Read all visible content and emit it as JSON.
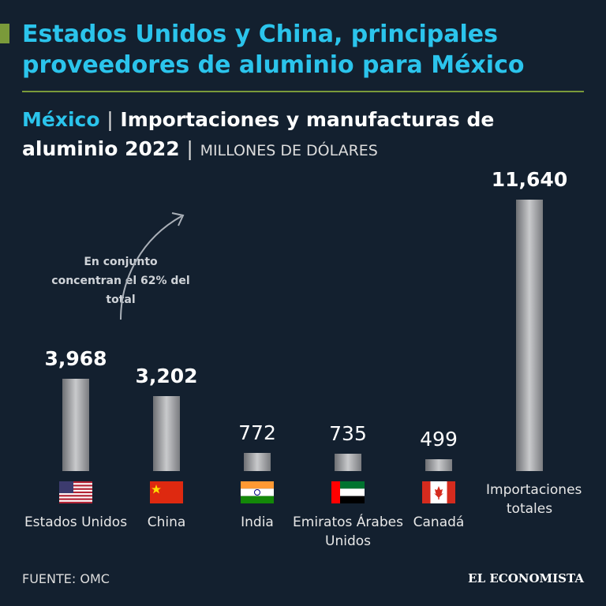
{
  "title": "Estados Unidos y China, principales proveedores de aluminio para México",
  "subtitle": {
    "country": "México",
    "separator": "|",
    "text": "Importaciones y manufacturas de aluminio 2022",
    "unit": "MILLONES DE DÓLARES"
  },
  "chart_data": {
    "type": "bar",
    "categories": [
      "Estados Unidos",
      "China",
      "India",
      "Emiratos Árabes Unidos",
      "Canadá",
      "Importaciones totales"
    ],
    "values": [
      3968,
      3202,
      772,
      735,
      499,
      11640
    ],
    "value_labels": [
      "3,968",
      "3,202",
      "772",
      "735",
      "499",
      "11,640"
    ],
    "highlight": [
      true,
      true,
      false,
      false,
      false,
      true
    ],
    "annotation": "En conjunto concentran el 62% del total"
  },
  "footer": {
    "source": "FUENTE: OMC",
    "brand": "EL ECONOMISTA"
  }
}
